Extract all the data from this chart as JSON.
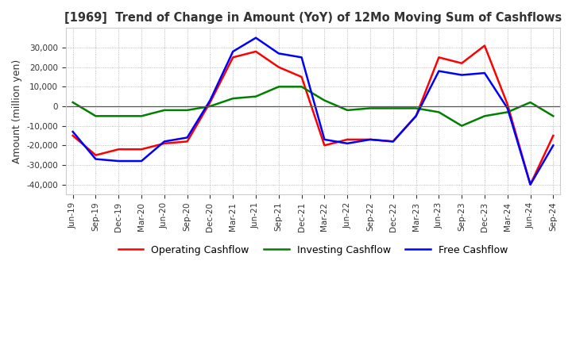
{
  "title": "[1969]  Trend of Change in Amount (YoY) of 12Mo Moving Sum of Cashflows",
  "ylabel": "Amount (million yen)",
  "ylim": [
    -45000,
    40000
  ],
  "yticks": [
    -40000,
    -30000,
    -20000,
    -10000,
    0,
    10000,
    20000,
    30000
  ],
  "labels": [
    "Jun-19",
    "Sep-19",
    "Dec-19",
    "Mar-20",
    "Jun-20",
    "Sep-20",
    "Dec-20",
    "Mar-21",
    "Jun-21",
    "Sep-21",
    "Dec-21",
    "Mar-22",
    "Jun-22",
    "Sep-22",
    "Dec-22",
    "Mar-23",
    "Jun-23",
    "Sep-23",
    "Dec-23",
    "Mar-24",
    "Jun-24",
    "Sep-24"
  ],
  "operating": [
    -15000,
    -25000,
    -22000,
    -22000,
    -19000,
    -18000,
    2000,
    25000,
    28000,
    20000,
    15000,
    -20000,
    -17000,
    -17000,
    -18000,
    -5000,
    25000,
    22000,
    31000,
    1000,
    -40000,
    -15000
  ],
  "investing": [
    2000,
    -5000,
    -5000,
    -5000,
    -2000,
    -2000,
    0,
    4000,
    5000,
    10000,
    10000,
    3000,
    -2000,
    -1000,
    -1000,
    -1000,
    -3000,
    -10000,
    -5000,
    -3000,
    2000,
    -5000
  ],
  "free": [
    -13000,
    -27000,
    -28000,
    -28000,
    -18000,
    -16000,
    3000,
    28000,
    35000,
    27000,
    25000,
    -17000,
    -19000,
    -17000,
    -18000,
    -5000,
    18000,
    16000,
    17000,
    -1000,
    -40000,
    -20000
  ],
  "operating_color": "#ff0000",
  "investing_color": "#008000",
  "free_color": "#0000ff",
  "background_color": "#ffffff",
  "grid_color": "#aaaaaa",
  "title_color": "#333333",
  "zero_line_color": "#555555"
}
